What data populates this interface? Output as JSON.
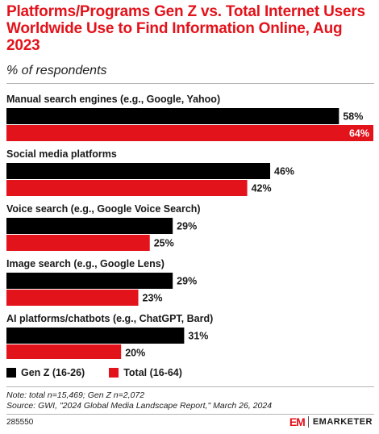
{
  "header": {
    "title": "Platforms/Programs Gen Z vs. Total Internet Users Worldwide Use to Find Information Online, Aug 2023",
    "subtitle": "% of respondents"
  },
  "chart_data": {
    "type": "bar",
    "orientation": "horizontal",
    "title": "Platforms/Programs Gen Z vs. Total Internet Users Worldwide Use to Find Information Online, Aug 2023",
    "subtitle": "% of respondents",
    "categories": [
      "Manual search engines (e.g., Google, Yahoo)",
      "Social media platforms",
      "Voice search (e.g., Google Voice Search)",
      "Image search (e.g., Google Lens)",
      "AI platforms/chatbots (e.g., ChatGPT, Bard)"
    ],
    "series": [
      {
        "name": "Gen Z (16-26)",
        "color": "#000000",
        "values": [
          58,
          46,
          29,
          29,
          31
        ],
        "labels": [
          "58%",
          "46%",
          "29%",
          "29%",
          "31%"
        ]
      },
      {
        "name": "Total (16-64)",
        "color": "#e3131b",
        "values": [
          64,
          42,
          25,
          23,
          20
        ],
        "labels": [
          "64%",
          "42%",
          "25%",
          "23%",
          "20%"
        ]
      }
    ],
    "xlim": [
      0,
      64
    ],
    "grid": false,
    "legend_position": "bottom-left"
  },
  "footer": {
    "note": "Note: total n=15,469; Gen Z n=2,072",
    "source": "Source: GWI, \"2024 Global Media Landscape Report,\" March 26, 2024",
    "chart_id": "285550",
    "brand_mark": "EM",
    "brand_name": "EMARKETER"
  }
}
